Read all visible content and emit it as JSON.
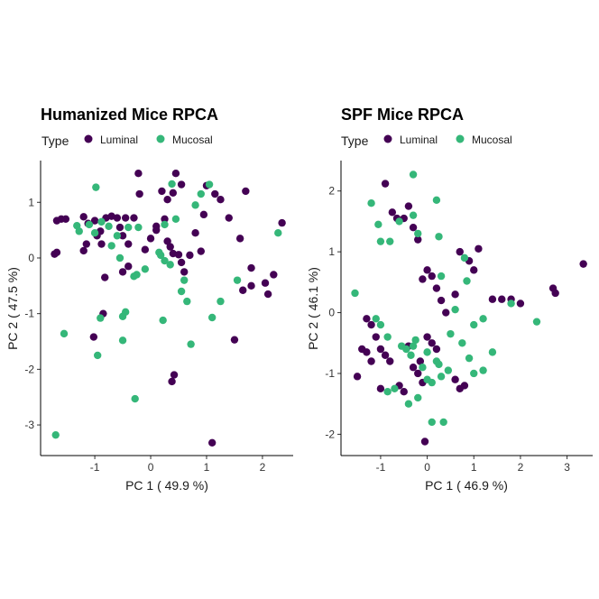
{
  "colors": {
    "luminal": "#440154",
    "mucosal": "#35B779",
    "axis": "#000000",
    "text": "#1a1a1a"
  },
  "chart_data": [
    {
      "type": "scatter",
      "title": "Humanized Mice RPCA",
      "xlabel": "PC 1 ( 49.9 %)",
      "ylabel": "PC 2 ( 47.5 %)",
      "legend_title": "Type",
      "legend_position": "top-left",
      "grid": false,
      "xlim": [
        -1.97,
        2.55
      ],
      "ylim": [
        -3.55,
        1.75
      ],
      "xticks": [
        -1,
        0,
        1,
        2
      ],
      "yticks": [
        -3,
        -2,
        -1,
        0,
        1
      ],
      "series": [
        {
          "name": "Luminal",
          "color": "#440154",
          "points": [
            [
              -1.68,
              0.67
            ],
            [
              -1.6,
              0.7
            ],
            [
              -1.52,
              0.7
            ],
            [
              -1.68,
              0.1
            ],
            [
              -1.72,
              0.07
            ],
            [
              -1.2,
              0.74
            ],
            [
              -1.12,
              0.62
            ],
            [
              -1.15,
              0.25
            ],
            [
              -1.2,
              0.13
            ],
            [
              -1.0,
              0.67
            ],
            [
              -0.96,
              0.4
            ],
            [
              -0.9,
              0.48
            ],
            [
              -0.88,
              0.25
            ],
            [
              -0.8,
              0.72
            ],
            [
              -0.7,
              0.75
            ],
            [
              -0.6,
              0.72
            ],
            [
              -0.55,
              0.55
            ],
            [
              -0.5,
              0.4
            ],
            [
              -0.45,
              0.72
            ],
            [
              -0.4,
              0.25
            ],
            [
              -0.4,
              -0.15
            ],
            [
              -0.5,
              -0.25
            ],
            [
              -0.82,
              -0.35
            ],
            [
              -0.85,
              -1.0
            ],
            [
              -1.02,
              -1.42
            ],
            [
              -0.3,
              0.72
            ],
            [
              -0.22,
              1.52
            ],
            [
              -0.2,
              1.15
            ],
            [
              -0.1,
              0.15
            ],
            [
              0.1,
              0.57
            ],
            [
              0.1,
              0.5
            ],
            [
              0.0,
              0.35
            ],
            [
              0.2,
              1.2
            ],
            [
              0.3,
              1.05
            ],
            [
              0.4,
              1.17
            ],
            [
              0.25,
              0.7
            ],
            [
              0.3,
              0.3
            ],
            [
              0.35,
              0.2
            ],
            [
              0.4,
              0.08
            ],
            [
              0.45,
              1.52
            ],
            [
              0.55,
              1.32
            ],
            [
              0.5,
              0.06
            ],
            [
              0.55,
              -0.08
            ],
            [
              0.6,
              -0.25
            ],
            [
              0.7,
              0.05
            ],
            [
              0.8,
              0.45
            ],
            [
              0.9,
              0.12
            ],
            [
              0.95,
              0.78
            ],
            [
              1.0,
              1.3
            ],
            [
              1.15,
              1.15
            ],
            [
              1.25,
              1.05
            ],
            [
              1.4,
              0.72
            ],
            [
              1.6,
              0.35
            ],
            [
              1.7,
              1.2
            ],
            [
              1.8,
              -0.18
            ],
            [
              2.05,
              -0.45
            ],
            [
              2.1,
              -0.65
            ],
            [
              2.2,
              -0.3
            ],
            [
              2.35,
              0.63
            ],
            [
              1.65,
              -0.58
            ],
            [
              1.8,
              -0.5
            ],
            [
              1.5,
              -1.47
            ],
            [
              1.1,
              -3.32
            ],
            [
              0.42,
              -2.1
            ],
            [
              0.38,
              -2.22
            ]
          ]
        },
        {
          "name": "Mucosal",
          "color": "#35B779",
          "points": [
            [
              -1.7,
              -3.18
            ],
            [
              -1.55,
              -1.36
            ],
            [
              -1.32,
              0.58
            ],
            [
              -1.28,
              0.48
            ],
            [
              -1.1,
              0.6
            ],
            [
              -1.0,
              0.45
            ],
            [
              -0.98,
              1.27
            ],
            [
              -0.88,
              0.65
            ],
            [
              -0.7,
              0.22
            ],
            [
              -0.75,
              0.57
            ],
            [
              -0.6,
              0.4
            ],
            [
              -0.55,
              0.0
            ],
            [
              -0.4,
              0.55
            ],
            [
              -0.3,
              -0.33
            ],
            [
              -0.25,
              -0.3
            ],
            [
              -0.45,
              -0.97
            ],
            [
              -0.5,
              -1.05
            ],
            [
              -0.5,
              -1.48
            ],
            [
              -0.9,
              -1.08
            ],
            [
              -0.95,
              -1.75
            ],
            [
              -0.28,
              -2.53
            ],
            [
              -0.22,
              0.55
            ],
            [
              0.15,
              0.1
            ],
            [
              0.22,
              -1.12
            ],
            [
              0.18,
              0.05
            ],
            [
              0.25,
              -0.05
            ],
            [
              0.35,
              -0.12
            ],
            [
              0.38,
              1.33
            ],
            [
              0.45,
              0.7
            ],
            [
              0.55,
              -0.6
            ],
            [
              0.6,
              -0.4
            ],
            [
              0.65,
              -0.78
            ],
            [
              0.72,
              -1.55
            ],
            [
              0.8,
              0.95
            ],
            [
              0.9,
              1.15
            ],
            [
              1.05,
              1.32
            ],
            [
              1.1,
              -1.07
            ],
            [
              1.25,
              -0.78
            ],
            [
              1.55,
              -0.4
            ],
            [
              2.28,
              0.45
            ],
            [
              0.25,
              0.6
            ],
            [
              -0.1,
              -0.2
            ]
          ]
        }
      ]
    },
    {
      "type": "scatter",
      "title": "SPF Mice RPCA",
      "xlabel": "PC 1 ( 46.9 %)",
      "ylabel": "PC 2 ( 46.1 %)",
      "legend_title": "Type",
      "legend_position": "top-left",
      "grid": false,
      "xlim": [
        -1.85,
        3.55
      ],
      "ylim": [
        -2.35,
        2.5
      ],
      "xticks": [
        -1,
        0,
        1,
        2,
        3
      ],
      "yticks": [
        -2,
        -1,
        0,
        1,
        2
      ],
      "series": [
        {
          "name": "Luminal",
          "color": "#440154",
          "points": [
            [
              -0.9,
              2.12
            ],
            [
              -0.75,
              1.65
            ],
            [
              -0.65,
              1.55
            ],
            [
              -0.5,
              1.55
            ],
            [
              -0.4,
              1.75
            ],
            [
              -0.3,
              1.4
            ],
            [
              -0.2,
              1.2
            ],
            [
              -0.1,
              0.55
            ],
            [
              0.0,
              0.7
            ],
            [
              0.1,
              0.6
            ],
            [
              0.2,
              0.4
            ],
            [
              0.3,
              0.2
            ],
            [
              0.4,
              0.0
            ],
            [
              0.6,
              0.3
            ],
            [
              0.7,
              1.0
            ],
            [
              0.9,
              0.85
            ],
            [
              1.0,
              0.7
            ],
            [
              1.1,
              1.05
            ],
            [
              1.4,
              0.22
            ],
            [
              1.6,
              0.22
            ],
            [
              1.8,
              0.22
            ],
            [
              2.0,
              0.15
            ],
            [
              2.7,
              0.4
            ],
            [
              2.75,
              0.32
            ],
            [
              3.35,
              0.8
            ],
            [
              -1.5,
              -1.05
            ],
            [
              -1.4,
              -0.6
            ],
            [
              -1.3,
              -0.1
            ],
            [
              -1.2,
              -0.2
            ],
            [
              -1.1,
              -0.4
            ],
            [
              -1.0,
              -0.6
            ],
            [
              -0.9,
              -0.7
            ],
            [
              -0.8,
              -0.8
            ],
            [
              -1.3,
              -0.65
            ],
            [
              -1.2,
              -0.8
            ],
            [
              -0.6,
              -1.2
            ],
            [
              -0.5,
              -1.3
            ],
            [
              -0.3,
              -0.9
            ],
            [
              -0.2,
              -1.0
            ],
            [
              -0.15,
              -0.8
            ],
            [
              -0.1,
              -1.15
            ],
            [
              0.0,
              -0.4
            ],
            [
              0.1,
              -0.5
            ],
            [
              0.2,
              -0.6
            ],
            [
              0.6,
              -1.1
            ],
            [
              0.8,
              -1.2
            ],
            [
              0.7,
              -1.25
            ],
            [
              -0.05,
              -2.12
            ],
            [
              -1.0,
              -1.25
            ],
            [
              -0.4,
              -0.55
            ]
          ]
        },
        {
          "name": "Mucosal",
          "color": "#35B779",
          "points": [
            [
              -1.55,
              0.32
            ],
            [
              -1.2,
              1.8
            ],
            [
              -1.05,
              1.45
            ],
            [
              -0.6,
              1.5
            ],
            [
              -0.3,
              1.6
            ],
            [
              -0.3,
              2.27
            ],
            [
              -0.2,
              1.3
            ],
            [
              0.2,
              1.85
            ],
            [
              0.25,
              1.25
            ],
            [
              -0.8,
              1.17
            ],
            [
              -1.0,
              1.17
            ],
            [
              0.3,
              0.6
            ],
            [
              0.8,
              0.9
            ],
            [
              0.85,
              0.52
            ],
            [
              0.6,
              0.05
            ],
            [
              1.0,
              -0.2
            ],
            [
              1.2,
              -0.1
            ],
            [
              1.8,
              0.15
            ],
            [
              2.35,
              -0.15
            ],
            [
              -1.1,
              -0.1
            ],
            [
              -1.0,
              -0.2
            ],
            [
              -0.85,
              -0.4
            ],
            [
              -0.55,
              -0.55
            ],
            [
              -0.45,
              -0.6
            ],
            [
              -0.3,
              -0.55
            ],
            [
              -0.25,
              -0.45
            ],
            [
              0.0,
              -0.65
            ],
            [
              0.2,
              -0.8
            ],
            [
              0.25,
              -0.85
            ],
            [
              -0.35,
              -0.7
            ],
            [
              -0.1,
              -0.9
            ],
            [
              0.0,
              -1.1
            ],
            [
              0.1,
              -1.15
            ],
            [
              0.3,
              -1.05
            ],
            [
              0.45,
              -0.95
            ],
            [
              -0.85,
              -1.3
            ],
            [
              -0.7,
              -1.25
            ],
            [
              -0.4,
              -1.5
            ],
            [
              -0.2,
              -1.4
            ],
            [
              0.1,
              -1.8
            ],
            [
              0.35,
              -1.8
            ],
            [
              0.75,
              -0.5
            ],
            [
              0.9,
              -0.75
            ],
            [
              1.0,
              -1.0
            ],
            [
              1.2,
              -0.95
            ],
            [
              1.4,
              -0.65
            ],
            [
              0.5,
              -0.35
            ]
          ]
        }
      ]
    }
  ]
}
